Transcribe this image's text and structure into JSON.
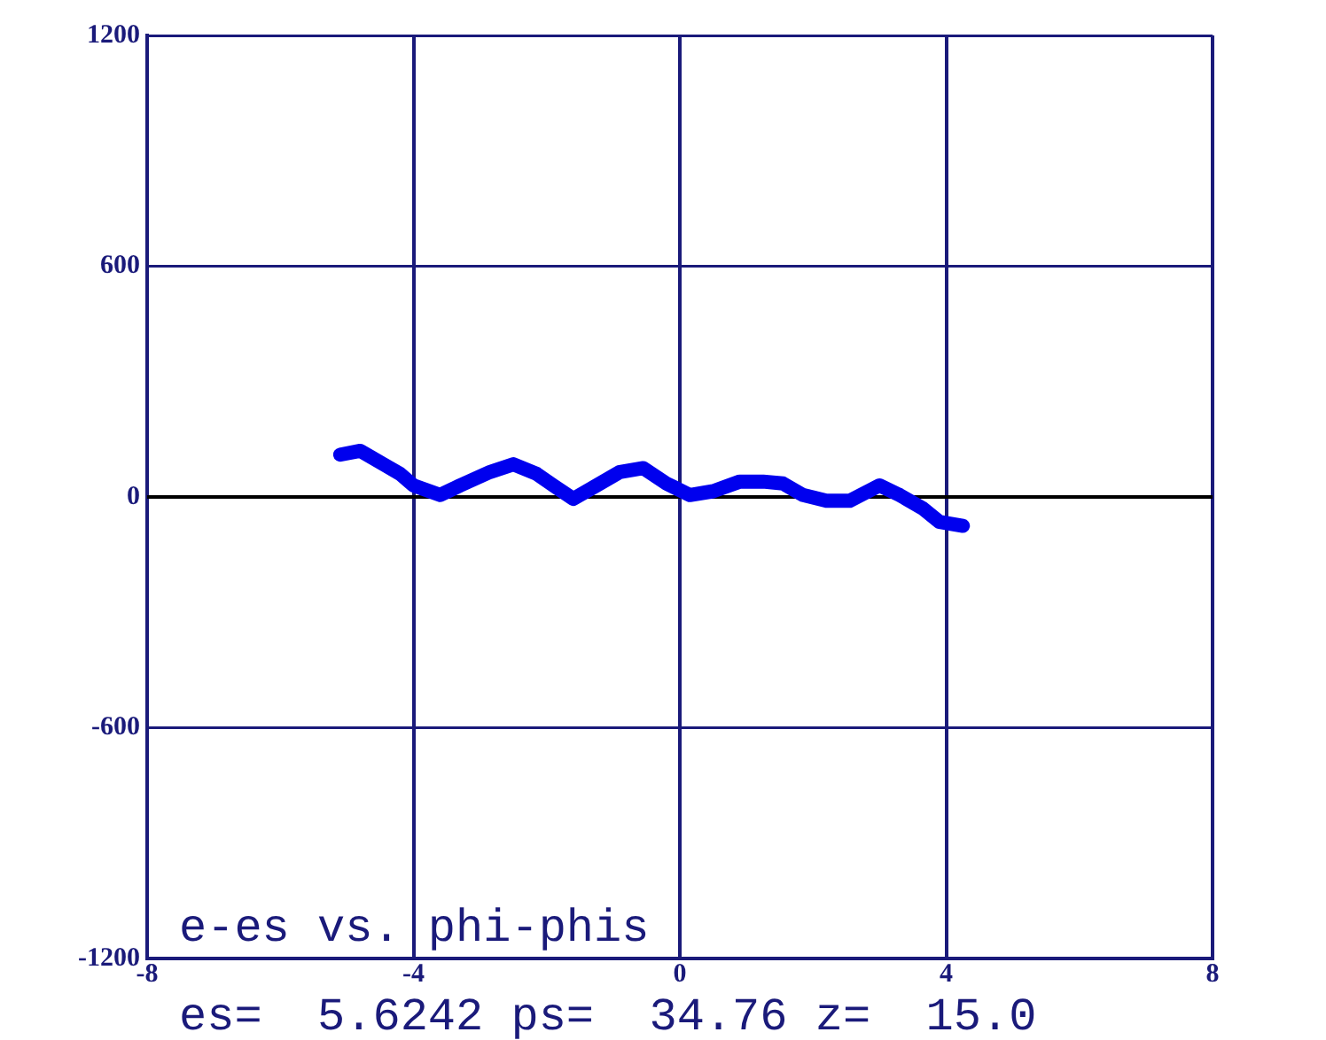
{
  "chart_data": {
    "type": "line",
    "x": [
      -5.1,
      -4.8,
      -4.45,
      -4.2,
      -4,
      -3.6,
      -3.3,
      -2.85,
      -2.5,
      -2.15,
      -1.9,
      -1.6,
      -1.25,
      -0.9,
      -0.55,
      -0.2,
      0.15,
      0.5,
      0.9,
      1.25,
      1.55,
      1.85,
      2.2,
      2.55,
      3,
      3.3,
      3.65,
      3.9,
      4.25
    ],
    "series": [
      {
        "color": "#0000ee",
        "values": [
          110,
          120,
          85,
          60,
          30,
          5,
          30,
          65,
          85,
          60,
          30,
          -5,
          30,
          65,
          75,
          35,
          5,
          15,
          40,
          40,
          35,
          5,
          -10,
          -10,
          30,
          5,
          -30,
          -65,
          -75
        ]
      }
    ],
    "xlim": [
      -8,
      8
    ],
    "xticks": [
      -8,
      -4,
      0,
      4,
      8
    ],
    "ylim": [
      -1200,
      1200
    ],
    "yticks": [
      -1200,
      -600,
      0,
      600,
      1200
    ],
    "grid": true,
    "marker": "none",
    "line_style": "solid",
    "legend": false,
    "ref_lines": [
      {
        "axis": "y",
        "value": 0,
        "color": "#000000"
      }
    ],
    "annotations": [
      "e-es vs. phi-phis",
      "es=  5.6242 ps=  34.76 z=  15.0"
    ]
  }
}
